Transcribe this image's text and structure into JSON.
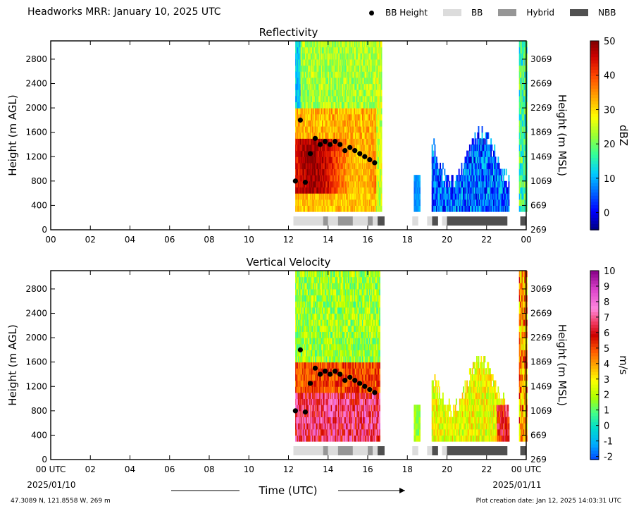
{
  "header": {
    "title": "Headworks MRR:  January 10, 2025 UTC",
    "legend": [
      {
        "label": "BB Height",
        "kind": "dot",
        "color": "#000000"
      },
      {
        "label": "BB",
        "kind": "swatch",
        "color": "#dcdcdc"
      },
      {
        "label": "Hybrid",
        "kind": "swatch",
        "color": "#969696"
      },
      {
        "label": "NBB",
        "kind": "swatch",
        "color": "#505050"
      }
    ]
  },
  "footer": {
    "location": "47.3089 N, 121.8558 W, 269 m",
    "created": "Plot creation date: Jan 12, 2025 14:03:31 UTC",
    "xlabel": "Time (UTC)",
    "start_date": "2025/01/10",
    "end_date": "2025/01/11"
  },
  "chart_data": [
    {
      "type": "heatmap",
      "title": "Reflectivity",
      "ylabel": "Height (m AGL)",
      "ylabel_right": "Height (m MSL)",
      "xlim": [
        0,
        24
      ],
      "ylim": [
        0,
        3100
      ],
      "x_ticks": [
        "00",
        "02",
        "04",
        "06",
        "08",
        "10",
        "12",
        "14",
        "16",
        "18",
        "20",
        "22",
        "00"
      ],
      "y_ticks": [
        0,
        400,
        800,
        1200,
        1600,
        2000,
        2400,
        2800
      ],
      "y_ticks_right": [
        269,
        669,
        1069,
        1469,
        1869,
        2269,
        2669,
        3069
      ],
      "colorbar": {
        "label": "dBZ",
        "min": -5,
        "max": 50,
        "ticks": [
          0,
          10,
          20,
          30,
          40,
          50
        ]
      },
      "palette": "reflectivity",
      "bb_height": {
        "x": [
          12.35,
          12.6,
          12.85,
          13.1,
          13.35,
          13.6,
          13.85,
          14.1,
          14.35,
          14.6,
          14.85,
          15.1,
          15.35,
          15.6,
          15.85,
          16.1,
          16.35
        ],
        "y": [
          800,
          1800,
          780,
          1250,
          1500,
          1400,
          1450,
          1400,
          1450,
          1400,
          1300,
          1350,
          1300,
          1250,
          1200,
          1150,
          1100
        ]
      },
      "bb_class": [
        {
          "start": 12.25,
          "end": 13.75,
          "class": "BB"
        },
        {
          "start": 13.75,
          "end": 14.0,
          "class": "Hybrid"
        },
        {
          "start": 14.0,
          "end": 14.5,
          "class": "BB"
        },
        {
          "start": 14.5,
          "end": 15.25,
          "class": "Hybrid"
        },
        {
          "start": 15.25,
          "end": 16.0,
          "class": "BB"
        },
        {
          "start": 16.0,
          "end": 16.25,
          "class": "Hybrid"
        },
        {
          "start": 16.25,
          "end": 16.5,
          "class": "BB"
        },
        {
          "start": 16.5,
          "end": 16.85,
          "class": "NBB"
        },
        {
          "start": 18.25,
          "end": 18.55,
          "class": "BB"
        },
        {
          "start": 19.0,
          "end": 19.25,
          "class": "BB"
        },
        {
          "start": 19.25,
          "end": 19.55,
          "class": "NBB"
        },
        {
          "start": 19.75,
          "end": 20.0,
          "class": "BB"
        },
        {
          "start": 20.0,
          "end": 23.05,
          "class": "NBB"
        },
        {
          "start": 23.7,
          "end": 24.0,
          "class": "NBB"
        }
      ]
    },
    {
      "type": "heatmap",
      "title": "Vertical Velocity",
      "ylabel": "Height (m AGL)",
      "ylabel_right": "Height (m MSL)",
      "xlim": [
        0,
        24
      ],
      "ylim": [
        0,
        3100
      ],
      "x_ticks": [
        "00 UTC",
        "02",
        "04",
        "06",
        "08",
        "10",
        "12",
        "14",
        "16",
        "18",
        "20",
        "22",
        "00 UTC"
      ],
      "y_ticks": [
        0,
        400,
        800,
        1200,
        1600,
        2000,
        2400,
        2800
      ],
      "y_ticks_right": [
        269,
        669,
        1069,
        1469,
        1869,
        2269,
        2669,
        3069
      ],
      "colorbar": {
        "label": "m/s",
        "min": -2.2,
        "max": 10,
        "ticks": [
          -2,
          -1,
          0,
          1,
          2,
          3,
          4,
          5,
          6,
          7,
          8,
          9,
          10
        ]
      },
      "palette": "velocity",
      "bb_height": {
        "x": [
          12.35,
          12.6,
          12.85,
          13.1,
          13.35,
          13.6,
          13.85,
          14.1,
          14.35,
          14.6,
          14.85,
          15.1,
          15.35,
          15.6,
          15.85,
          16.1,
          16.35
        ],
        "y": [
          800,
          1800,
          780,
          1250,
          1500,
          1400,
          1450,
          1400,
          1450,
          1400,
          1300,
          1350,
          1300,
          1250,
          1200,
          1150,
          1100
        ]
      },
      "bb_class": [
        {
          "start": 12.25,
          "end": 13.75,
          "class": "BB"
        },
        {
          "start": 13.75,
          "end": 14.0,
          "class": "Hybrid"
        },
        {
          "start": 14.0,
          "end": 14.5,
          "class": "BB"
        },
        {
          "start": 14.5,
          "end": 15.25,
          "class": "Hybrid"
        },
        {
          "start": 15.25,
          "end": 16.0,
          "class": "BB"
        },
        {
          "start": 16.0,
          "end": 16.25,
          "class": "Hybrid"
        },
        {
          "start": 16.25,
          "end": 16.5,
          "class": "BB"
        },
        {
          "start": 16.5,
          "end": 16.85,
          "class": "NBB"
        },
        {
          "start": 18.25,
          "end": 18.55,
          "class": "BB"
        },
        {
          "start": 19.0,
          "end": 19.25,
          "class": "BB"
        },
        {
          "start": 19.25,
          "end": 19.55,
          "class": "NBB"
        },
        {
          "start": 19.75,
          "end": 20.0,
          "class": "BB"
        },
        {
          "start": 20.0,
          "end": 23.05,
          "class": "NBB"
        },
        {
          "start": 23.7,
          "end": 24.0,
          "class": "NBB"
        }
      ]
    }
  ]
}
